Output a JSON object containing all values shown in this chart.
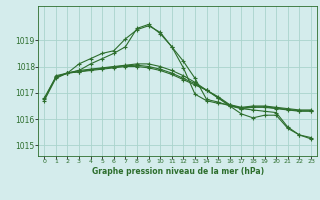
{
  "title": "Graphe pression niveau de la mer (hPa)",
  "background_color": "#d4ecec",
  "grid_color": "#aad4cc",
  "line_color": "#2d6e2d",
  "marker_color": "#2d6e2d",
  "xlim": [
    -0.5,
    23.5
  ],
  "ylim": [
    1014.6,
    1020.3
  ],
  "yticks": [
    1015,
    1016,
    1017,
    1018,
    1019
  ],
  "xticks": [
    0,
    1,
    2,
    3,
    4,
    5,
    6,
    7,
    8,
    9,
    10,
    11,
    12,
    13,
    14,
    15,
    16,
    17,
    18,
    19,
    20,
    21,
    22,
    23
  ],
  "series": [
    {
      "x": [
        0,
        1,
        2,
        3,
        4,
        5,
        6,
        7,
        8,
        9,
        10,
        11,
        12,
        13,
        14,
        15,
        16,
        17,
        18,
        19,
        20,
        21,
        22,
        23
      ],
      "y": [
        1016.8,
        1017.6,
        1017.75,
        1017.8,
        1017.85,
        1017.9,
        1017.95,
        1018.0,
        1018.0,
        1017.95,
        1017.85,
        1017.7,
        1017.5,
        1017.3,
        1017.1,
        1016.85,
        1016.55,
        1016.45,
        1016.5,
        1016.5,
        1016.45,
        1016.4,
        1016.35,
        1016.35
      ]
    },
    {
      "x": [
        0,
        1,
        2,
        3,
        4,
        5,
        6,
        7,
        8,
        9,
        10,
        11,
        12,
        13,
        14,
        15,
        16,
        17,
        18,
        19,
        20,
        21,
        22,
        23
      ],
      "y": [
        1016.7,
        1017.55,
        1017.75,
        1017.85,
        1017.9,
        1017.95,
        1018.0,
        1018.05,
        1018.1,
        1018.1,
        1018.0,
        1017.85,
        1017.65,
        1017.4,
        1017.1,
        1016.8,
        1016.5,
        1016.4,
        1016.45,
        1016.45,
        1016.4,
        1016.35,
        1016.3,
        1016.3
      ]
    },
    {
      "x": [
        0,
        1,
        2,
        3,
        4,
        5,
        6,
        7,
        8,
        9,
        10,
        11,
        12,
        13,
        14,
        15,
        16,
        17,
        18,
        19,
        20,
        21,
        22,
        23
      ],
      "y": [
        1016.75,
        1017.6,
        1017.75,
        1017.8,
        1017.88,
        1017.93,
        1017.98,
        1018.03,
        1018.05,
        1018.0,
        1017.9,
        1017.75,
        1017.55,
        1017.35,
        1017.1,
        1016.82,
        1016.52,
        1016.42,
        1016.47,
        1016.47,
        1016.42,
        1016.37,
        1016.32,
        1016.32
      ]
    },
    {
      "x": [
        1,
        2,
        3,
        4,
        5,
        6,
        7,
        8,
        9,
        10,
        11,
        12,
        13,
        14,
        15,
        16,
        17,
        18,
        19,
        20,
        21,
        22,
        23
      ],
      "y": [
        1017.65,
        1017.75,
        1018.1,
        1018.3,
        1018.5,
        1018.6,
        1019.05,
        1019.4,
        1019.55,
        1019.3,
        1018.75,
        1017.95,
        1016.95,
        1016.7,
        1016.6,
        1016.55,
        1016.4,
        1016.35,
        1016.3,
        1016.25,
        1015.7,
        1015.4,
        1015.3
      ]
    },
    {
      "x": [
        2,
        3,
        4,
        5,
        6,
        7,
        8,
        9,
        10,
        11,
        12,
        13,
        14,
        15,
        16,
        17,
        18,
        19,
        20,
        21,
        22,
        23
      ],
      "y": [
        1017.75,
        1017.85,
        1018.1,
        1018.3,
        1018.5,
        1018.75,
        1019.45,
        1019.6,
        1019.25,
        1018.75,
        1018.2,
        1017.55,
        1016.75,
        1016.65,
        1016.5,
        1016.2,
        1016.05,
        1016.15,
        1016.15,
        1015.65,
        1015.4,
        1015.25
      ]
    }
  ]
}
